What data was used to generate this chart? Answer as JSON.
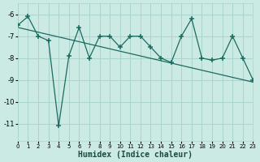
{
  "x": [
    0,
    1,
    2,
    3,
    4,
    5,
    6,
    7,
    8,
    9,
    10,
    11,
    12,
    13,
    14,
    15,
    16,
    17,
    18,
    19,
    20,
    21,
    22,
    23
  ],
  "y_data": [
    -6.5,
    -6.1,
    -7.0,
    -7.2,
    -11.1,
    -7.9,
    -6.6,
    -8.0,
    -7.0,
    -7.0,
    -7.5,
    -7.0,
    -7.0,
    -7.5,
    -8.0,
    -8.2,
    -7.0,
    -6.2,
    -8.0,
    -8.1,
    -8.0,
    -7.0,
    -8.0,
    -9.0
  ],
  "trend_x": [
    0,
    23
  ],
  "trend_y": [
    -6.6,
    -9.1
  ],
  "xlabel": "Humidex (Indice chaleur)",
  "bg_color": "#cceae4",
  "grid_color": "#aad4cc",
  "line_color": "#1a6b60",
  "trend_color": "#1a6b60",
  "ylim": [
    -11.8,
    -5.5
  ],
  "xlim": [
    0,
    23
  ],
  "yticks": [
    -6,
    -7,
    -8,
    -9,
    -10,
    -11
  ],
  "xticks": [
    0,
    1,
    2,
    3,
    4,
    5,
    6,
    7,
    8,
    9,
    10,
    11,
    12,
    13,
    14,
    15,
    16,
    17,
    18,
    19,
    20,
    21,
    22,
    23
  ],
  "xlabel_fontsize": 7,
  "tick_fontsize": 5,
  "ytick_fontsize": 6
}
